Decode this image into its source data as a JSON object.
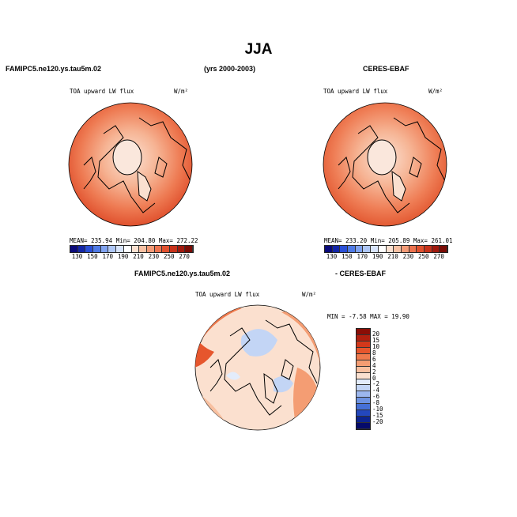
{
  "title": "JJA",
  "left_header": "FAMIPC5.ne120.ys.tau5m.02",
  "years": "(yrs 2000-2003)",
  "right_header": "CERES-EBAF",
  "diff_left_header": "FAMIPC5.ne120.ys.tau5m.02",
  "diff_right_header": "- CERES-EBAF",
  "panels": [
    {
      "name": "model",
      "variable": "TOA upward LW flux",
      "units": "W/m²",
      "stats": "MEAN= 235.94   Min= 204.80   Max= 272.22"
    },
    {
      "name": "obs",
      "variable": "TOA upward LW flux",
      "units": "W/m²",
      "stats": "MEAN= 233.20   Min= 205.89   Max= 261.01"
    },
    {
      "name": "diff",
      "variable": "TOA upward LW flux",
      "units": "W/m²",
      "stats": "MIN =  -7.58  MAX =  19.90"
    }
  ],
  "colorbar_abs": {
    "labels": [
      "130",
      "150",
      "170",
      "190",
      "210",
      "230",
      "250",
      "270"
    ],
    "colors": [
      "#0a0a7a",
      "#1326a8",
      "#2a4fd6",
      "#4f7ae6",
      "#7fa2ef",
      "#aec6f5",
      "#d7e3fa",
      "#ffffff",
      "#fbe0d0",
      "#f8c1a4",
      "#f39a76",
      "#ec734f",
      "#e0512e",
      "#c7321a",
      "#a11a0e",
      "#7a0c05"
    ]
  },
  "colorbar_diff": {
    "labels": [
      "20",
      "15",
      "10",
      "8",
      "6",
      "4",
      "2",
      "0",
      "-2",
      "-4",
      "-6",
      "-8",
      "-10",
      "-15",
      "-20"
    ],
    "colors": [
      "#8b0e06",
      "#b2200f",
      "#d2381b",
      "#e6562d",
      "#ef7a4d",
      "#f49d73",
      "#f8c0a0",
      "#fbe0cf",
      "#e3ecfb",
      "#c3d5f5",
      "#9cb7ee",
      "#6e93e2",
      "#4670d6",
      "#2347bd",
      "#0d248f",
      "#050a6a"
    ]
  }
}
